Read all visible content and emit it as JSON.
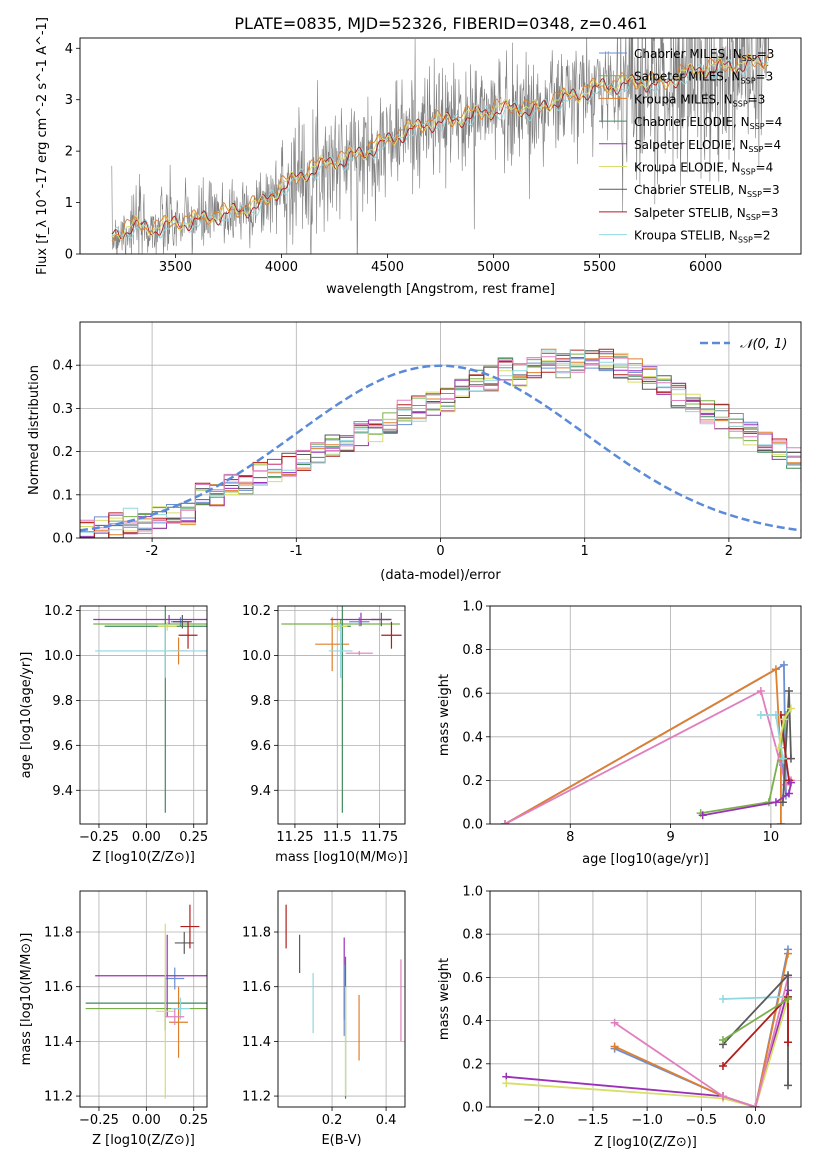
{
  "figure_title": "PLATE=0835, MJD=52326, FIBERID=0348, z=0.461",
  "colors": {
    "Chabrier MILES": "#6a8fd4",
    "Salpeter MILES": "#7ab04a",
    "Kroupa MILES": "#e07f2c",
    "Chabrier ELODIE": "#3f8a5c",
    "Salpeter ELODIE": "#9b30b8",
    "Kroupa ELODIE": "#d8de6a",
    "Chabrier STELIB": "#5a5a5a",
    "Salpeter STELIB": "#b01e1e",
    "Kroupa STELIB": "#8fd8e0",
    "pink": "#e07fbf",
    "data": "#7f7f7f",
    "normal": "#5b8bd8"
  },
  "chart_data": [
    {
      "id": "spectrum",
      "type": "line",
      "xlabel": "wavelength [Angstrom, rest frame]",
      "ylabel": "Flux [f_λ 10^-17 erg cm^-2 s^-1 A^-1]",
      "xlim": [
        3050,
        6450
      ],
      "ylim": [
        0,
        4.2
      ],
      "xticks": [
        3500,
        4000,
        4500,
        5000,
        5500,
        6000
      ],
      "yticks": [
        0,
        1,
        2,
        3,
        4
      ],
      "grid": false,
      "legend_position": "right",
      "series": [
        {
          "name": "Chabrier MILES",
          "nssp": "3"
        },
        {
          "name": "Salpeter MILES",
          "nssp": "3"
        },
        {
          "name": "Kroupa MILES",
          "nssp": "3"
        },
        {
          "name": "Chabrier ELODIE",
          "nssp": "4"
        },
        {
          "name": "Salpeter ELODIE",
          "nssp": "4"
        },
        {
          "name": "Kroupa ELODIE",
          "nssp": "4"
        },
        {
          "name": "Chabrier STELIB",
          "nssp": "3"
        },
        {
          "name": "Salpeter STELIB",
          "nssp": "3"
        },
        {
          "name": "Kroupa STELIB",
          "nssp": "2"
        }
      ],
      "model_continuum": [
        [
          3200,
          0.35
        ],
        [
          3300,
          0.55
        ],
        [
          3400,
          0.5
        ],
        [
          3500,
          0.6
        ],
        [
          3600,
          0.65
        ],
        [
          3700,
          0.75
        ],
        [
          3800,
          0.85
        ],
        [
          3900,
          0.95
        ],
        [
          4000,
          1.3
        ],
        [
          4100,
          1.55
        ],
        [
          4200,
          1.75
        ],
        [
          4300,
          1.85
        ],
        [
          4400,
          2.0
        ],
        [
          4500,
          2.2
        ],
        [
          4600,
          2.4
        ],
        [
          4700,
          2.55
        ],
        [
          4800,
          2.6
        ],
        [
          4900,
          2.7
        ],
        [
          5000,
          2.8
        ],
        [
          5100,
          2.85
        ],
        [
          5200,
          2.8
        ],
        [
          5300,
          3.0
        ],
        [
          5400,
          3.1
        ],
        [
          5500,
          3.25
        ],
        [
          5600,
          3.3
        ],
        [
          5700,
          3.35
        ],
        [
          5800,
          3.3
        ],
        [
          5900,
          3.5
        ],
        [
          6000,
          3.6
        ],
        [
          6100,
          3.65
        ],
        [
          6200,
          3.7
        ],
        [
          6300,
          3.75
        ]
      ]
    },
    {
      "id": "residuals",
      "type": "line",
      "xlabel": "(data-model)/error",
      "ylabel": "Normed distribution",
      "xlim": [
        -2.5,
        2.5
      ],
      "ylim": [
        0,
        0.5
      ],
      "xticks": [
        -2,
        -1,
        0,
        1,
        2
      ],
      "yticks": [
        0.0,
        0.1,
        0.2,
        0.3,
        0.4
      ],
      "grid": true,
      "legend_position": "top-right",
      "legend": "𝒩(0, 1)",
      "bin_width": 0.1,
      "histogram_center": [
        0.02,
        0.025,
        0.03,
        0.04,
        0.04,
        0.05,
        0.06,
        0.06,
        0.1,
        0.1,
        0.12,
        0.13,
        0.15,
        0.16,
        0.17,
        0.18,
        0.2,
        0.21,
        0.22,
        0.24,
        0.25,
        0.27,
        0.29,
        0.3,
        0.31,
        0.32,
        0.34,
        0.36,
        0.37,
        0.39,
        0.38,
        0.4,
        0.41,
        0.4,
        0.41,
        0.42,
        0.41,
        0.4,
        0.39,
        0.37,
        0.35,
        0.33,
        0.31,
        0.29,
        0.28,
        0.26,
        0.24,
        0.22,
        0.2,
        0.18,
        0.16,
        0.15,
        0.13,
        0.12,
        0.1,
        0.09,
        0.08,
        0.07,
        0.06,
        0.05
      ]
    },
    {
      "id": "age-vs-metallicity",
      "type": "scatter",
      "xlabel": "Z [log10(Z/Z⊙)]",
      "ylabel": "age [log10(age/yr)]",
      "xlim": [
        -0.35,
        0.32
      ],
      "ylim": [
        9.25,
        10.22
      ],
      "xticks": [
        -0.25,
        0.0,
        0.25
      ],
      "xticklabels": [
        "−0.25",
        "0.00",
        "0.25"
      ],
      "yticks": [
        9.4,
        9.6,
        9.8,
        10.0,
        10.2
      ],
      "grid": true,
      "points": [
        {
          "series": "Chabrier MILES",
          "x": 0.18,
          "y": 10.15,
          "ex": 0.05,
          "ey": 0.02
        },
        {
          "series": "Salpeter MILES",
          "x": 0.1,
          "y": 10.14,
          "ex": 0.38,
          "ey": 0.02
        },
        {
          "series": "Kroupa MILES",
          "x": 0.17,
          "y": 10.02,
          "ex": 0.05,
          "ey": 0.06
        },
        {
          "series": "Chabrier ELODIE",
          "x": 0.1,
          "y": 10.13,
          "ex": 0.32,
          "ey": 0.83
        },
        {
          "series": "Salpeter ELODIE",
          "x": 0.12,
          "y": 10.16,
          "ex": 0.4,
          "ey": 0.02
        },
        {
          "series": "Kroupa ELODIE",
          "x": 0.11,
          "y": 10.13,
          "ex": 0.05,
          "ey": 0.02
        },
        {
          "series": "Chabrier STELIB",
          "x": 0.19,
          "y": 10.15,
          "ex": 0.05,
          "ey": 0.03
        },
        {
          "series": "Salpeter STELIB",
          "x": 0.22,
          "y": 10.09,
          "ex": 0.05,
          "ey": 0.06
        },
        {
          "series": "Kroupa STELIB",
          "x": 0.1,
          "y": 10.02,
          "ex": 0.37,
          "ey": 0.12
        }
      ]
    },
    {
      "id": "age-vs-mass",
      "type": "scatter",
      "xlabel": "mass [log10(M/M⊙)]",
      "ylabel": "",
      "xlim": [
        11.15,
        11.9
      ],
      "ylim": [
        9.25,
        10.22
      ],
      "xticks": [
        11.25,
        11.5,
        11.75
      ],
      "yticks": [
        9.4,
        9.6,
        9.8,
        10.0,
        10.2
      ],
      "grid": true,
      "points": [
        {
          "series": "Chabrier MILES",
          "x": 11.63,
          "y": 10.15,
          "ex": 0.06,
          "ey": 0.02
        },
        {
          "series": "Salpeter MILES",
          "x": 11.52,
          "y": 10.14,
          "ex": 0.35,
          "ey": 0.02
        },
        {
          "series": "Kroupa MILES",
          "x": 11.47,
          "y": 10.05,
          "ex": 0.1,
          "ey": 0.12
        },
        {
          "series": "Chabrier ELODIE",
          "x": 11.53,
          "y": 10.13,
          "ex": 0.05,
          "ey": 0.83
        },
        {
          "series": "Salpeter ELODIE",
          "x": 11.64,
          "y": 10.16,
          "ex": 0.18,
          "ey": 0.03
        },
        {
          "series": "Kroupa ELODIE",
          "x": 11.51,
          "y": 10.13,
          "ex": 0.05,
          "ey": 0.02
        },
        {
          "series": "Chabrier STELIB",
          "x": 11.76,
          "y": 10.16,
          "ex": 0.06,
          "ey": 0.03
        },
        {
          "series": "Salpeter STELIB",
          "x": 11.82,
          "y": 10.09,
          "ex": 0.06,
          "ey": 0.06
        },
        {
          "series": "Kroupa STELIB",
          "x": 11.52,
          "y": 10.02,
          "ex": 0.07,
          "ey": 0.12
        },
        {
          "series": "pink",
          "x": 11.63,
          "y": 10.01,
          "ex": 0.08,
          "ey": 0.01
        }
      ]
    },
    {
      "id": "mass-weight-vs-age",
      "type": "line",
      "xlabel": "age [log10(age/yr)]",
      "ylabel": "mass weight",
      "xlim": [
        7.2,
        10.3
      ],
      "ylim": [
        0,
        1.0
      ],
      "xticks": [
        8,
        9,
        10
      ],
      "yticks": [
        0.0,
        0.2,
        0.4,
        0.6,
        0.8,
        1.0
      ],
      "grid": true,
      "series": [
        {
          "series": "Chabrier MILES",
          "points": [
            [
              7.35,
              0.0
            ],
            [
              10.13,
              0.73
            ],
            [
              10.15,
              0.13
            ],
            [
              10.12,
              0.27
            ]
          ]
        },
        {
          "series": "Kroupa MILES",
          "points": [
            [
              7.35,
              0.0
            ],
            [
              10.05,
              0.71
            ],
            [
              10.1,
              0.29
            ],
            [
              10.1,
              0.0
            ]
          ]
        },
        {
          "series": "Salpeter MILES",
          "points": [
            [
              9.3,
              0.05
            ],
            [
              9.98,
              0.1
            ],
            [
              10.1,
              0.35
            ],
            [
              10.15,
              0.5
            ]
          ]
        },
        {
          "series": "pink",
          "points": [
            [
              7.35,
              0.0
            ],
            [
              9.9,
              0.61
            ],
            [
              10.15,
              0.18
            ],
            [
              10.2,
              0.2
            ]
          ]
        },
        {
          "series": "Chabrier STELIB",
          "points": [
            [
              10.12,
              0.1
            ],
            [
              10.18,
              0.61
            ],
            [
              10.2,
              0.3
            ]
          ]
        },
        {
          "series": "Salpeter STELIB",
          "points": [
            [
              10.1,
              0.5
            ],
            [
              10.15,
              0.3
            ],
            [
              10.18,
              0.2
            ]
          ]
        },
        {
          "series": "Salpeter ELODIE",
          "points": [
            [
              9.32,
              0.04
            ],
            [
              10.05,
              0.1
            ],
            [
              10.18,
              0.14
            ],
            [
              10.2,
              0.19
            ]
          ]
        },
        {
          "series": "Kroupa STELIB",
          "points": [
            [
              9.9,
              0.5
            ],
            [
              10.05,
              0.5
            ],
            [
              10.12,
              0.3
            ]
          ]
        },
        {
          "series": "Kroupa ELODIE",
          "points": [
            [
              10.08,
              0.35
            ],
            [
              10.13,
              0.48
            ],
            [
              10.2,
              0.53
            ]
          ]
        }
      ]
    },
    {
      "id": "mass-vs-metallicity",
      "type": "scatter",
      "xlabel": "Z [log10(Z/Z⊙)]",
      "ylabel": "mass [log10(M/M⊙)]",
      "xlim": [
        -0.35,
        0.32
      ],
      "ylim": [
        11.16,
        11.95
      ],
      "xticks": [
        -0.25,
        0.0,
        0.25
      ],
      "xticklabels": [
        "−0.25",
        "0.00",
        "0.25"
      ],
      "yticks": [
        11.2,
        11.4,
        11.6,
        11.8
      ],
      "grid": true,
      "points": [
        {
          "series": "Chabrier MILES",
          "x": 0.15,
          "y": 11.63,
          "ex": 0.05,
          "ey": 0.04
        },
        {
          "series": "Salpeter MILES",
          "x": 0.1,
          "y": 11.52,
          "ex": 0.42,
          "ey": 0.03
        },
        {
          "series": "Kroupa MILES",
          "x": 0.17,
          "y": 11.47,
          "ex": 0.05,
          "ey": 0.13
        },
        {
          "series": "Chabrier ELODIE",
          "x": 0.1,
          "y": 11.54,
          "ex": 0.42,
          "ey": 0.1
        },
        {
          "series": "Salpeter ELODIE",
          "x": 0.11,
          "y": 11.64,
          "ex": 0.38,
          "ey": 0.15
        },
        {
          "series": "Kroupa ELODIE",
          "x": 0.1,
          "y": 11.51,
          "ex": 0.05,
          "ey": 0.32
        },
        {
          "series": "Chabrier STELIB",
          "x": 0.2,
          "y": 11.76,
          "ex": 0.05,
          "ey": 0.04
        },
        {
          "series": "Salpeter STELIB",
          "x": 0.23,
          "y": 11.82,
          "ex": 0.05,
          "ey": 0.08
        },
        {
          "series": "Kroupa STELIB",
          "x": 0.18,
          "y": 11.52,
          "ex": 0.05,
          "ey": 0.04
        },
        {
          "series": "pink",
          "x": 0.15,
          "y": 11.49,
          "ex": 0.05,
          "ey": 0.03
        }
      ]
    },
    {
      "id": "mass-vs-extinction",
      "type": "scatter",
      "xlabel": "E(B-V)",
      "ylabel": "",
      "xlim": [
        0.0,
        0.47
      ],
      "ylim": [
        11.16,
        11.95
      ],
      "xticks": [
        0.2,
        0.4
      ],
      "yticks": [
        11.2,
        11.4,
        11.6,
        11.8
      ],
      "grid": true,
      "points": [
        {
          "series": "Salpeter STELIB",
          "x": 0.03,
          "y": 11.82,
          "ey": 0.08
        },
        {
          "series": "Chabrier STELIB",
          "x": 0.08,
          "y": 11.72,
          "ey": 0.07
        },
        {
          "series": "Kroupa STELIB",
          "x": 0.13,
          "y": 11.54,
          "ey": 0.11
        },
        {
          "series": "Salpeter ELODIE",
          "x": 0.245,
          "y": 11.63,
          "ey": 0.15
        },
        {
          "series": "Chabrier MILES",
          "x": 0.245,
          "y": 11.55,
          "ey": 0.13
        },
        {
          "series": "Chabrier ELODIE",
          "x": 0.25,
          "y": 11.45,
          "ey": 0.26
        },
        {
          "series": "Kroupa ELODIE",
          "x": 0.25,
          "y": 11.4,
          "ey": 0.2
        },
        {
          "series": "Kroupa MILES",
          "x": 0.3,
          "y": 11.45,
          "ey": 0.12
        },
        {
          "series": "pink",
          "x": 0.455,
          "y": 11.55,
          "ey": 0.15
        }
      ]
    },
    {
      "id": "mass-weight-vs-metallicity",
      "type": "line",
      "xlabel": "Z [log10(Z/Z⊙)]",
      "ylabel": "mass weight",
      "xlim": [
        -2.45,
        0.42
      ],
      "ylim": [
        0,
        1.0
      ],
      "xticks": [
        -2.0,
        -1.5,
        -1.0,
        -0.5,
        0.0
      ],
      "xticklabels": [
        "−2.0",
        "−1.5",
        "−1.0",
        "−0.5",
        "0.0"
      ],
      "yticks": [
        0.0,
        0.2,
        0.4,
        0.6,
        0.8,
        1.0
      ],
      "grid": true,
      "series": [
        {
          "series": "Salpeter ELODIE",
          "points": [
            [
              -2.3,
              0.14
            ],
            [
              -0.3,
              0.05
            ],
            [
              0.0,
              0.0
            ],
            [
              0.3,
              0.54
            ]
          ]
        },
        {
          "series": "Kroupa ELODIE",
          "points": [
            [
              -2.3,
              0.11
            ],
            [
              -0.3,
              0.04
            ],
            [
              0.0,
              0.0
            ],
            [
              0.3,
              0.5
            ]
          ]
        },
        {
          "series": "Chabrier MILES",
          "points": [
            [
              -1.3,
              0.27
            ],
            [
              -0.3,
              0.05
            ],
            [
              0.0,
              0.0
            ],
            [
              0.3,
              0.73
            ]
          ]
        },
        {
          "series": "Kroupa MILES",
          "points": [
            [
              -1.3,
              0.28
            ],
            [
              -0.3,
              0.05
            ],
            [
              0.0,
              0.0
            ],
            [
              0.3,
              0.71
            ]
          ]
        },
        {
          "series": "pink",
          "points": [
            [
              -1.3,
              0.39
            ],
            [
              -0.3,
              0.05
            ],
            [
              0.0,
              0.0
            ],
            [
              0.3,
              0.6
            ]
          ]
        },
        {
          "series": "Kroupa STELIB",
          "points": [
            [
              -0.3,
              0.5
            ],
            [
              0.3,
              0.51
            ]
          ]
        },
        {
          "series": "Chabrier STELIB",
          "points": [
            [
              -0.3,
              0.29
            ],
            [
              0.3,
              0.61
            ],
            [
              0.3,
              0.1
            ]
          ]
        },
        {
          "series": "Salpeter STELIB",
          "points": [
            [
              -0.3,
              0.19
            ],
            [
              0.3,
              0.51
            ],
            [
              0.3,
              0.3
            ]
          ]
        },
        {
          "series": "Salpeter MILES",
          "points": [
            [
              -0.3,
              0.31
            ],
            [
              0.3,
              0.5
            ]
          ]
        }
      ]
    }
  ]
}
